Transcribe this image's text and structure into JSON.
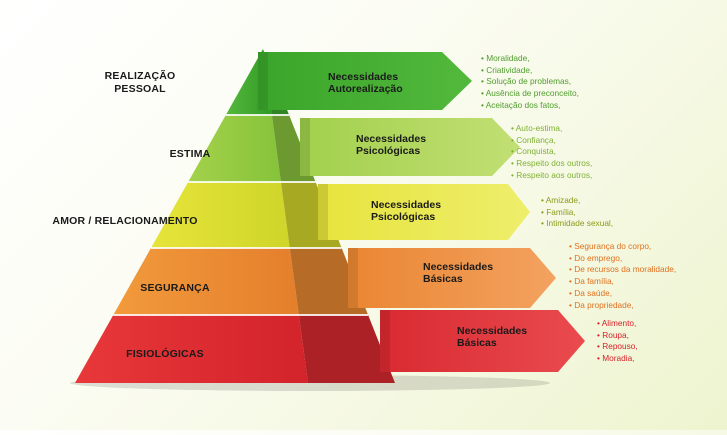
{
  "levels": [
    {
      "name": "REALIZAÇÃO\nPESSOAL",
      "need": "Necessidades\nAutorealização",
      "color": "#3fa92e",
      "items": [
        "Moralidade,",
        "Criatividade,",
        "Solução de problemas,",
        "Ausência de preconceito,",
        "Aceitação dos fatos,"
      ]
    },
    {
      "name": "ESTIMA",
      "need": "Necessidades\nPsicológicas",
      "color": "#8cc63e",
      "items": [
        "Auto-estima,",
        "Confiança,",
        "Conquista,",
        "Respeito dos outros,",
        "Respeito aos outros,"
      ]
    },
    {
      "name": "AMOR / RELACIONAMENTO",
      "need": "Necessidades\nPsicológicas",
      "color": "#d7d92c",
      "items": [
        "Amizade,",
        "Família,",
        "Intimidade sexual,"
      ]
    },
    {
      "name": "SEGURANÇA",
      "need": "Necessidades\nBásicas",
      "color": "#e98b32",
      "items": [
        "Segurança do corpo,",
        "Do emprego,",
        "De recursos da moralidade,",
        "Da família,",
        "Da saúde,",
        "Da propriedade,"
      ]
    },
    {
      "name": "FISIOLÓGICAS",
      "need": "Necessidades\nBásicas",
      "color": "#dd2a30",
      "items": [
        "Alimento,",
        "Roupa,",
        "Repouso,",
        "Moradia,"
      ]
    }
  ]
}
